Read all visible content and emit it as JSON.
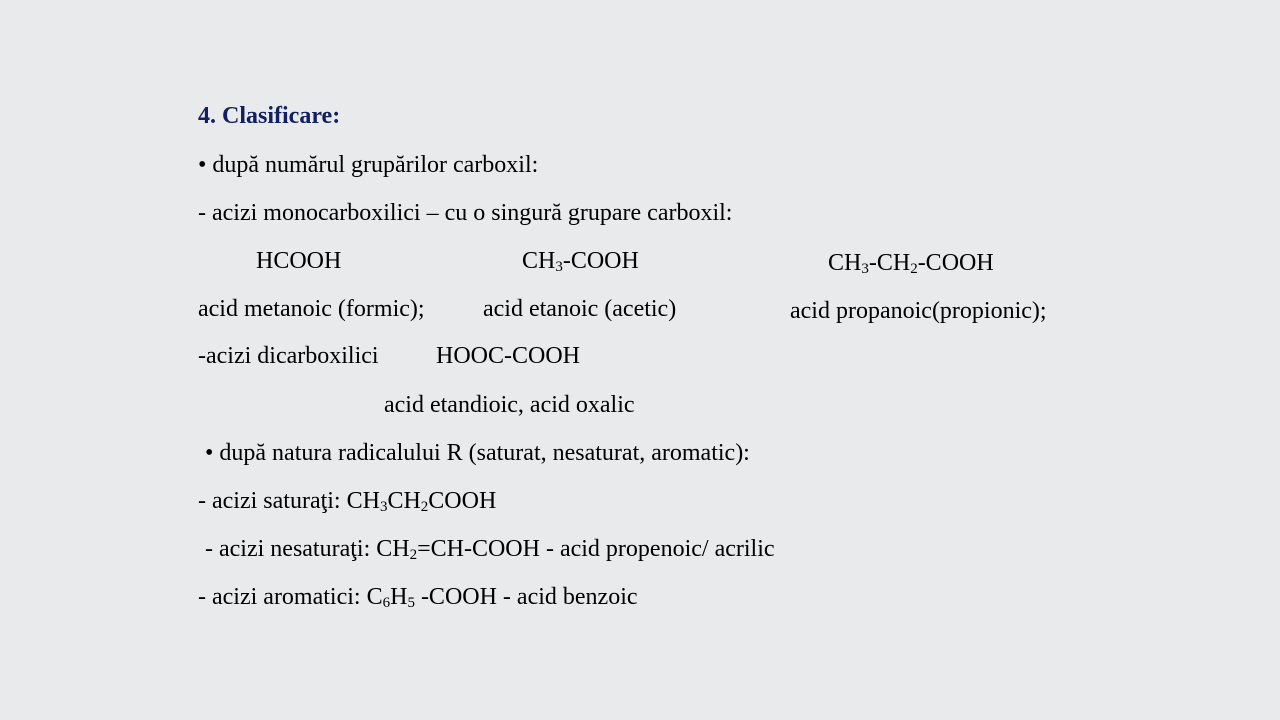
{
  "title": "4. Clasificare:",
  "colors": {
    "background": "#e9eaec",
    "title": "#132060",
    "text": "#000000"
  },
  "bullet1": "• după numărul grupărilor carboxil:",
  "mono": "- acizi monocarboxilici – cu o singură grupare carboxil:",
  "formulas": {
    "formic": "HCOOH",
    "acetic": {
      "a": "CH",
      "a_sub": "3",
      "b": "-COOH"
    },
    "propionic": {
      "a": "CH",
      "a_sub": "3",
      "b": "-CH",
      "b_sub": "2",
      "c": "-COOH"
    }
  },
  "names": {
    "formic": "acid metanoic (formic);",
    "acetic": "acid etanoic (acetic)",
    "propionic": "acid propanoic(propionic);"
  },
  "dicarboxilici": {
    "label": "-acizi dicarboxilici",
    "formula": "HOOC-COOH",
    "name": "acid etandioic, acid oxalic"
  },
  "bullet2": "• după natura radicalului R (saturat, nesaturat, aromatic):",
  "saturati": {
    "label": "- acizi saturaţi: ",
    "a": "CH",
    "a_sub": "3",
    "b": "CH",
    "b_sub": "2",
    "c": "COOH"
  },
  "nesaturati": {
    "label": "- acizi nesaturaţi: ",
    "a": "CH",
    "a_sub": "2",
    "b": "=CH-COOH - acid propenoic/ acrilic"
  },
  "aromatici": {
    "label": "- acizi aromatici: ",
    "a": "C",
    "a_sub": "6",
    "b": "H",
    "b_sub": "5",
    "c": " -COOH - acid benzoic"
  }
}
